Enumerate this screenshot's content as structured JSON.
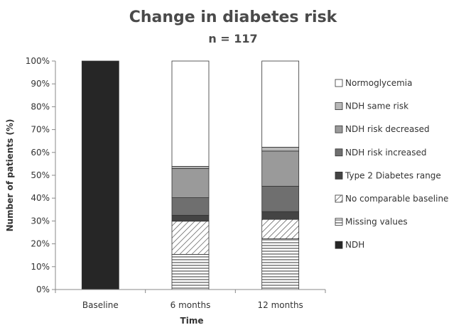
{
  "chart_data": {
    "type": "bar",
    "stacked": true,
    "title": "Change in diabetes risk",
    "subtitle": "n = 117",
    "xlabel": "Time",
    "ylabel": "Number of patients (%)",
    "ylim": [
      0,
      100
    ],
    "yticks": [
      "0%",
      "10%",
      "20%",
      "30%",
      "40%",
      "50%",
      "60%",
      "70%",
      "80%",
      "90%",
      "100%"
    ],
    "categories": [
      "Baseline",
      "6 months",
      "12 months"
    ],
    "legend_position": "right",
    "grid": false,
    "series": [
      {
        "name": "NDH",
        "key": "ndh",
        "fill": "#262626",
        "pattern": "solid",
        "values": [
          100,
          0,
          0
        ]
      },
      {
        "name": "Missing values",
        "key": "missing",
        "fill": "#ffffff",
        "pattern": "horizontal-lines",
        "values": [
          0,
          15.4,
          22.2
        ]
      },
      {
        "name": "No comparable baseline",
        "key": "nocomp",
        "fill": "#ffffff",
        "pattern": "diagonal-lines",
        "values": [
          0,
          14.5,
          8.5
        ]
      },
      {
        "name": "Type 2 Diabetes range",
        "key": "t2d",
        "fill": "#444444",
        "pattern": "solid",
        "values": [
          0,
          2.6,
          3.4
        ]
      },
      {
        "name": "NDH risk increased",
        "key": "inc",
        "fill": "#6f6f6f",
        "pattern": "solid",
        "values": [
          0,
          7.7,
          11.1
        ]
      },
      {
        "name": "NDH risk decreased",
        "key": "dec",
        "fill": "#9a9a9a",
        "pattern": "solid",
        "values": [
          0,
          12.8,
          15.4
        ]
      },
      {
        "name": "NDH same risk",
        "key": "same",
        "fill": "#b8b8b8",
        "pattern": "solid",
        "values": [
          0,
          0.9,
          1.7
        ]
      },
      {
        "name": "Normoglycemia",
        "key": "normo",
        "fill": "#ffffff",
        "pattern": "solid",
        "values": [
          0,
          46.1,
          37.7
        ]
      }
    ],
    "legend_order": [
      "normo",
      "same",
      "dec",
      "inc",
      "t2d",
      "nocomp",
      "missing",
      "ndh"
    ]
  }
}
